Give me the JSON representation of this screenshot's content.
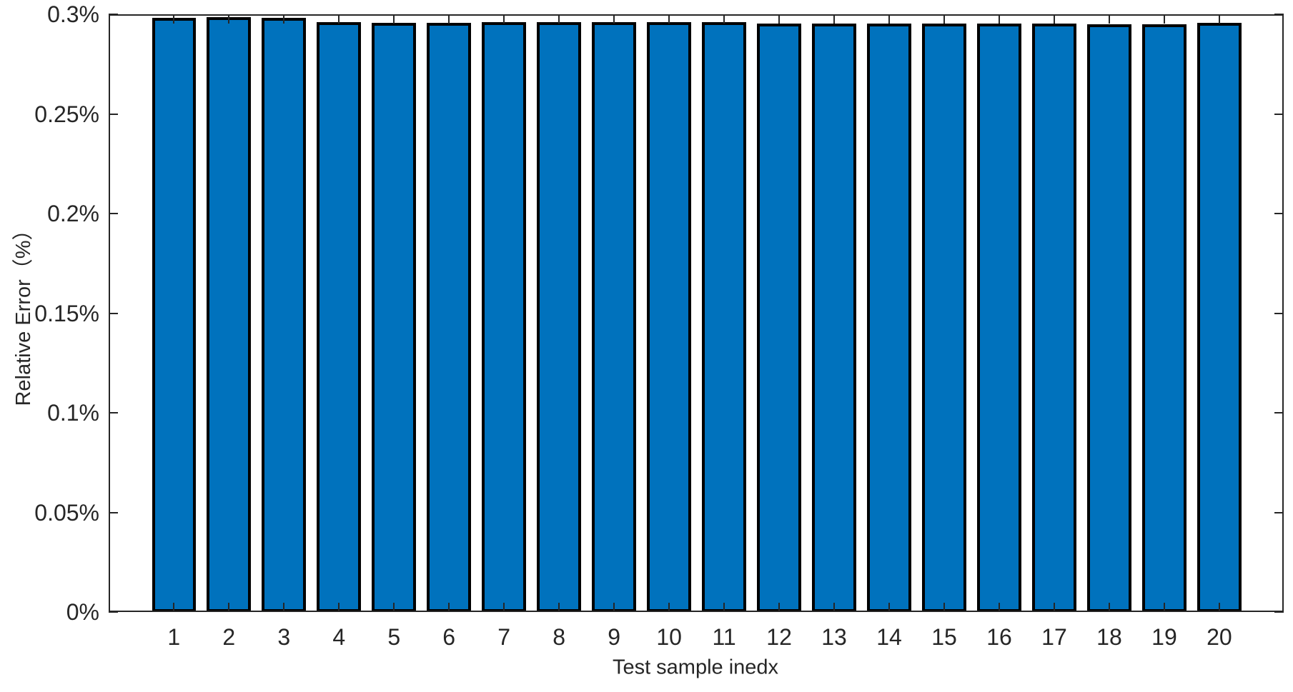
{
  "chart_data": {
    "type": "bar",
    "title": "",
    "xlabel": "Test sample inedx",
    "ylabel": "Relative Error（%）",
    "categories": [
      "1",
      "2",
      "3",
      "4",
      "5",
      "6",
      "7",
      "8",
      "9",
      "10",
      "11",
      "12",
      "13",
      "14",
      "15",
      "16",
      "17",
      "18",
      "19",
      "20"
    ],
    "values": [
      0.2976,
      0.2977,
      0.2976,
      0.2954,
      0.2951,
      0.2951,
      0.2952,
      0.2953,
      0.2952,
      0.2953,
      0.2952,
      0.2948,
      0.2948,
      0.2947,
      0.2946,
      0.2946,
      0.2945,
      0.2944,
      0.2943,
      0.295
    ],
    "ylim": [
      0,
      0.3
    ],
    "ytick_values": [
      0,
      0.05,
      0.1,
      0.15,
      0.2,
      0.25,
      0.3
    ],
    "ytick_labels": [
      "0%",
      "0.05%",
      "0.1%",
      "0.15%",
      "0.2%",
      "0.25%",
      "0.3%"
    ],
    "bar_color": "#0072BD",
    "bar_edge_color": "#000000",
    "axis_color": "#262626",
    "plot_background": "#FFFFFF",
    "grid": false,
    "legend": "none",
    "tick_direction": "in",
    "box": true
  }
}
